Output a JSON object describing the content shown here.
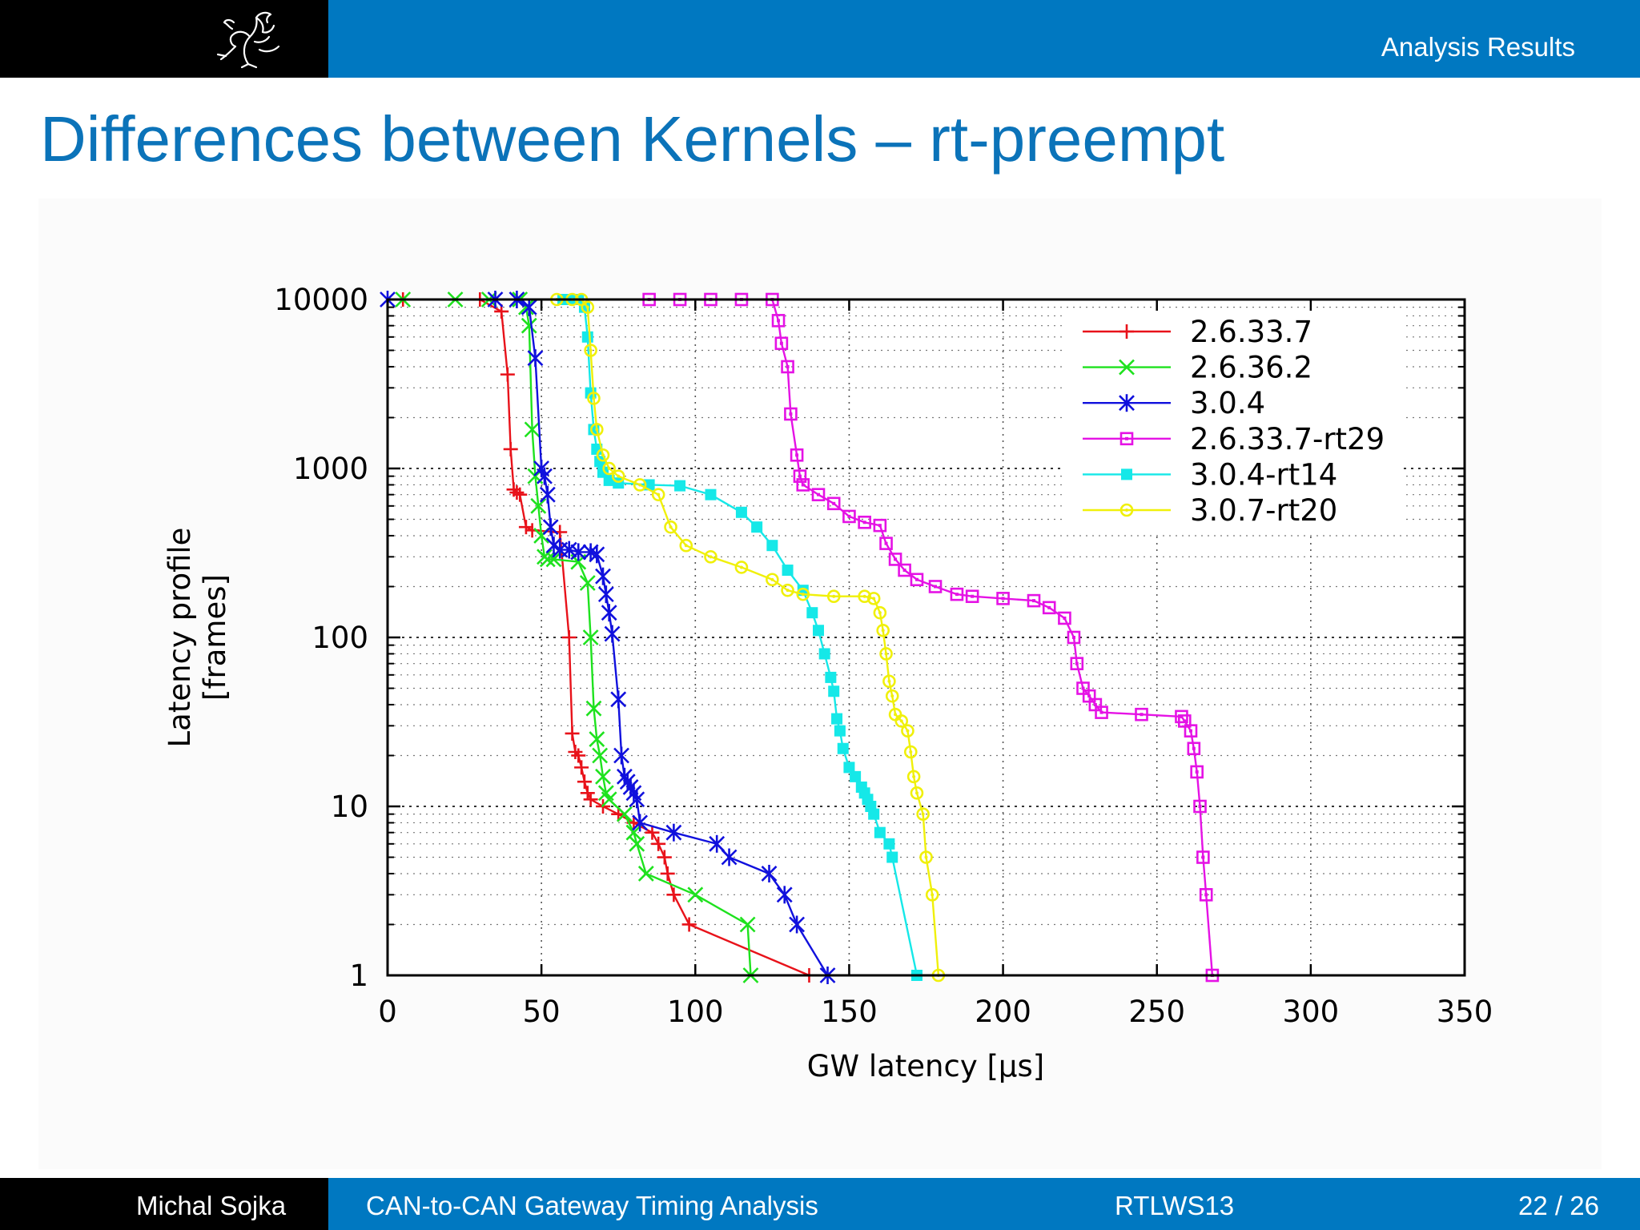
{
  "header": {
    "section": "Analysis Results"
  },
  "title": "Differences between Kernels – rt-preempt",
  "footer": {
    "author": "Michal Sojka",
    "talk": "CAN-to-CAN Gateway Timing Analysis",
    "venue": "RTLWS13",
    "page": "22 / 26"
  },
  "chart_data": {
    "type": "line",
    "xlabel": "GW latency [µs]",
    "ylabel": "Latency profile [frames]",
    "xlim": [
      0,
      350
    ],
    "ylim": [
      1,
      10000
    ],
    "yscale": "log",
    "xticks": [
      0,
      50,
      100,
      150,
      200,
      250,
      300,
      350
    ],
    "yticks": [
      1,
      10,
      100,
      1000,
      10000
    ],
    "ytick_labels": [
      "1",
      "10",
      "100",
      "1000",
      "10000"
    ],
    "grid": true,
    "legend_position": "top-right",
    "series": [
      {
        "name": "2.6.33.7",
        "color": "#e8121a",
        "marker": "plus",
        "points": [
          [
            5,
            10000
          ],
          [
            30,
            10000
          ],
          [
            37,
            8500
          ],
          [
            39,
            3600
          ],
          [
            40,
            1300
          ],
          [
            41,
            750
          ],
          [
            42,
            720
          ],
          [
            43,
            700
          ],
          [
            45,
            450
          ],
          [
            47,
            430
          ],
          [
            56,
            420
          ],
          [
            59,
            100
          ],
          [
            60,
            27
          ],
          [
            61,
            21
          ],
          [
            62,
            20
          ],
          [
            63,
            17
          ],
          [
            64,
            14
          ],
          [
            65,
            12
          ],
          [
            66,
            11
          ],
          [
            70,
            10
          ],
          [
            75,
            9
          ],
          [
            80,
            8
          ],
          [
            86,
            7
          ],
          [
            88,
            6
          ],
          [
            90,
            5
          ],
          [
            91,
            4
          ],
          [
            93,
            3
          ],
          [
            98,
            2
          ],
          [
            137,
            1
          ]
        ]
      },
      {
        "name": "2.6.36.2",
        "color": "#1ee21e",
        "marker": "cross",
        "points": [
          [
            5,
            10000
          ],
          [
            22,
            10000
          ],
          [
            33,
            10000
          ],
          [
            43,
            10000
          ],
          [
            45,
            9000
          ],
          [
            46,
            7000
          ],
          [
            47,
            1700
          ],
          [
            48,
            900
          ],
          [
            49,
            600
          ],
          [
            50,
            400
          ],
          [
            51,
            300
          ],
          [
            52,
            290
          ],
          [
            54,
            290
          ],
          [
            62,
            280
          ],
          [
            65,
            210
          ],
          [
            66,
            100
          ],
          [
            67,
            38
          ],
          [
            68,
            25
          ],
          [
            69,
            20
          ],
          [
            70,
            15
          ],
          [
            71,
            12
          ],
          [
            72,
            11
          ],
          [
            77,
            9
          ],
          [
            80,
            7
          ],
          [
            81,
            6
          ],
          [
            84,
            4
          ],
          [
            100,
            3
          ],
          [
            117,
            2
          ],
          [
            118,
            1
          ]
        ]
      },
      {
        "name": "3.0.4",
        "color": "#1010dd",
        "marker": "star",
        "points": [
          [
            0,
            10000
          ],
          [
            35,
            10000
          ],
          [
            42,
            10000
          ],
          [
            46,
            9000
          ],
          [
            48,
            4500
          ],
          [
            50,
            1000
          ],
          [
            51,
            900
          ],
          [
            52,
            700
          ],
          [
            53,
            450
          ],
          [
            54,
            350
          ],
          [
            56,
            330
          ],
          [
            59,
            330
          ],
          [
            62,
            320
          ],
          [
            66,
            320
          ],
          [
            68,
            310
          ],
          [
            70,
            230
          ],
          [
            71,
            180
          ],
          [
            72,
            140
          ],
          [
            73,
            105
          ],
          [
            75,
            43
          ],
          [
            76,
            20
          ],
          [
            77,
            15
          ],
          [
            78,
            14
          ],
          [
            79,
            13
          ],
          [
            80,
            12
          ],
          [
            81,
            11
          ],
          [
            82,
            8
          ],
          [
            93,
            7
          ],
          [
            107,
            6
          ],
          [
            111,
            5
          ],
          [
            124,
            4
          ],
          [
            129,
            3
          ],
          [
            133,
            2
          ],
          [
            143,
            1
          ]
        ]
      },
      {
        "name": "2.6.33.7-rt29",
        "color": "#e512e5",
        "marker": "square",
        "points": [
          [
            85,
            10000
          ],
          [
            95,
            10000
          ],
          [
            105,
            10000
          ],
          [
            115,
            10000
          ],
          [
            125,
            10000
          ],
          [
            127,
            7500
          ],
          [
            128,
            5500
          ],
          [
            130,
            4000
          ],
          [
            131,
            2100
          ],
          [
            133,
            1200
          ],
          [
            134,
            900
          ],
          [
            135,
            800
          ],
          [
            140,
            700
          ],
          [
            145,
            620
          ],
          [
            150,
            520
          ],
          [
            155,
            480
          ],
          [
            160,
            460
          ],
          [
            162,
            360
          ],
          [
            165,
            290
          ],
          [
            168,
            250
          ],
          [
            172,
            220
          ],
          [
            178,
            200
          ],
          [
            185,
            180
          ],
          [
            190,
            175
          ],
          [
            200,
            170
          ],
          [
            210,
            165
          ],
          [
            215,
            150
          ],
          [
            220,
            130
          ],
          [
            223,
            100
          ],
          [
            224,
            70
          ],
          [
            226,
            50
          ],
          [
            228,
            45
          ],
          [
            230,
            40
          ],
          [
            232,
            36
          ],
          [
            245,
            35
          ],
          [
            258,
            34
          ],
          [
            259,
            32
          ],
          [
            261,
            28
          ],
          [
            262,
            22
          ],
          [
            263,
            16
          ],
          [
            264,
            10
          ],
          [
            265,
            5
          ],
          [
            266,
            3
          ],
          [
            268,
            1
          ]
        ]
      },
      {
        "name": "3.0.4-rt14",
        "color": "#15e8e8",
        "marker": "filled-square",
        "points": [
          [
            57,
            10000
          ],
          [
            60,
            10000
          ],
          [
            62,
            10000
          ],
          [
            64,
            9000
          ],
          [
            65,
            6000
          ],
          [
            66,
            2800
          ],
          [
            67,
            1700
          ],
          [
            68,
            1300
          ],
          [
            69,
            1100
          ],
          [
            70,
            950
          ],
          [
            72,
            850
          ],
          [
            75,
            820
          ],
          [
            85,
            800
          ],
          [
            95,
            790
          ],
          [
            105,
            700
          ],
          [
            115,
            550
          ],
          [
            120,
            450
          ],
          [
            125,
            350
          ],
          [
            130,
            250
          ],
          [
            135,
            190
          ],
          [
            138,
            140
          ],
          [
            140,
            110
          ],
          [
            142,
            80
          ],
          [
            144,
            58
          ],
          [
            145,
            48
          ],
          [
            146,
            33
          ],
          [
            147,
            28
          ],
          [
            148,
            22
          ],
          [
            150,
            17
          ],
          [
            152,
            15
          ],
          [
            154,
            13
          ],
          [
            155,
            12
          ],
          [
            156,
            11
          ],
          [
            157,
            10
          ],
          [
            158,
            9
          ],
          [
            160,
            7
          ],
          [
            163,
            6
          ],
          [
            164,
            5
          ],
          [
            172,
            1
          ]
        ]
      },
      {
        "name": "3.0.7-rt20",
        "color": "#f0f00a",
        "marker": "circle",
        "points": [
          [
            55,
            10000
          ],
          [
            60,
            10000
          ],
          [
            63,
            10000
          ],
          [
            65,
            9000
          ],
          [
            66,
            5000
          ],
          [
            67,
            2600
          ],
          [
            68,
            1700
          ],
          [
            70,
            1200
          ],
          [
            72,
            1000
          ],
          [
            75,
            900
          ],
          [
            82,
            800
          ],
          [
            88,
            700
          ],
          [
            92,
            450
          ],
          [
            97,
            350
          ],
          [
            105,
            300
          ],
          [
            115,
            260
          ],
          [
            125,
            220
          ],
          [
            130,
            190
          ],
          [
            135,
            180
          ],
          [
            145,
            175
          ],
          [
            155,
            175
          ],
          [
            158,
            170
          ],
          [
            160,
            140
          ],
          [
            161,
            110
          ],
          [
            162,
            80
          ],
          [
            163,
            55
          ],
          [
            164,
            45
          ],
          [
            165,
            35
          ],
          [
            167,
            32
          ],
          [
            169,
            28
          ],
          [
            170,
            21
          ],
          [
            171,
            15
          ],
          [
            172,
            12
          ],
          [
            174,
            9
          ],
          [
            175,
            5
          ],
          [
            177,
            3
          ],
          [
            179,
            1
          ]
        ]
      }
    ]
  }
}
